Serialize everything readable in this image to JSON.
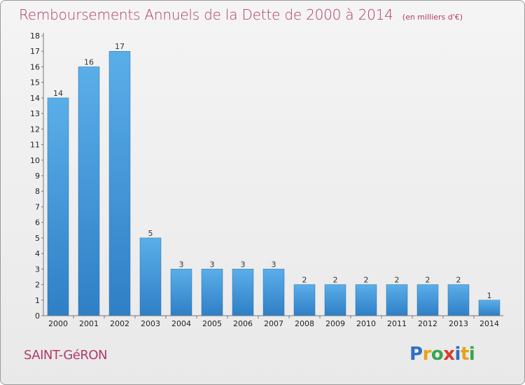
{
  "chart_data": {
    "type": "bar",
    "title": "Remboursements Annuels de la Dette de 2000 à 2014",
    "subtitle": "(en milliers d'€)",
    "xlabel": "",
    "ylabel": "",
    "categories": [
      "2000",
      "2001",
      "2002",
      "2003",
      "2004",
      "2005",
      "2006",
      "2007",
      "2008",
      "2009",
      "2010",
      "2011",
      "2012",
      "2013",
      "2014"
    ],
    "values": [
      14,
      16,
      17,
      5,
      3,
      3,
      3,
      3,
      2,
      2,
      2,
      2,
      2,
      2,
      1
    ],
    "ylim": [
      0,
      18
    ],
    "yticks": [
      0,
      1,
      2,
      3,
      4,
      5,
      6,
      7,
      8,
      9,
      10,
      11,
      12,
      13,
      14,
      15,
      16,
      17,
      18
    ],
    "grid": false,
    "bar_color": "#3d8fd6"
  },
  "footer": {
    "commune": "SAINT-GéRON",
    "logo_letters": [
      "P",
      "r",
      "o",
      "x",
      "i",
      "t",
      "i"
    ]
  }
}
